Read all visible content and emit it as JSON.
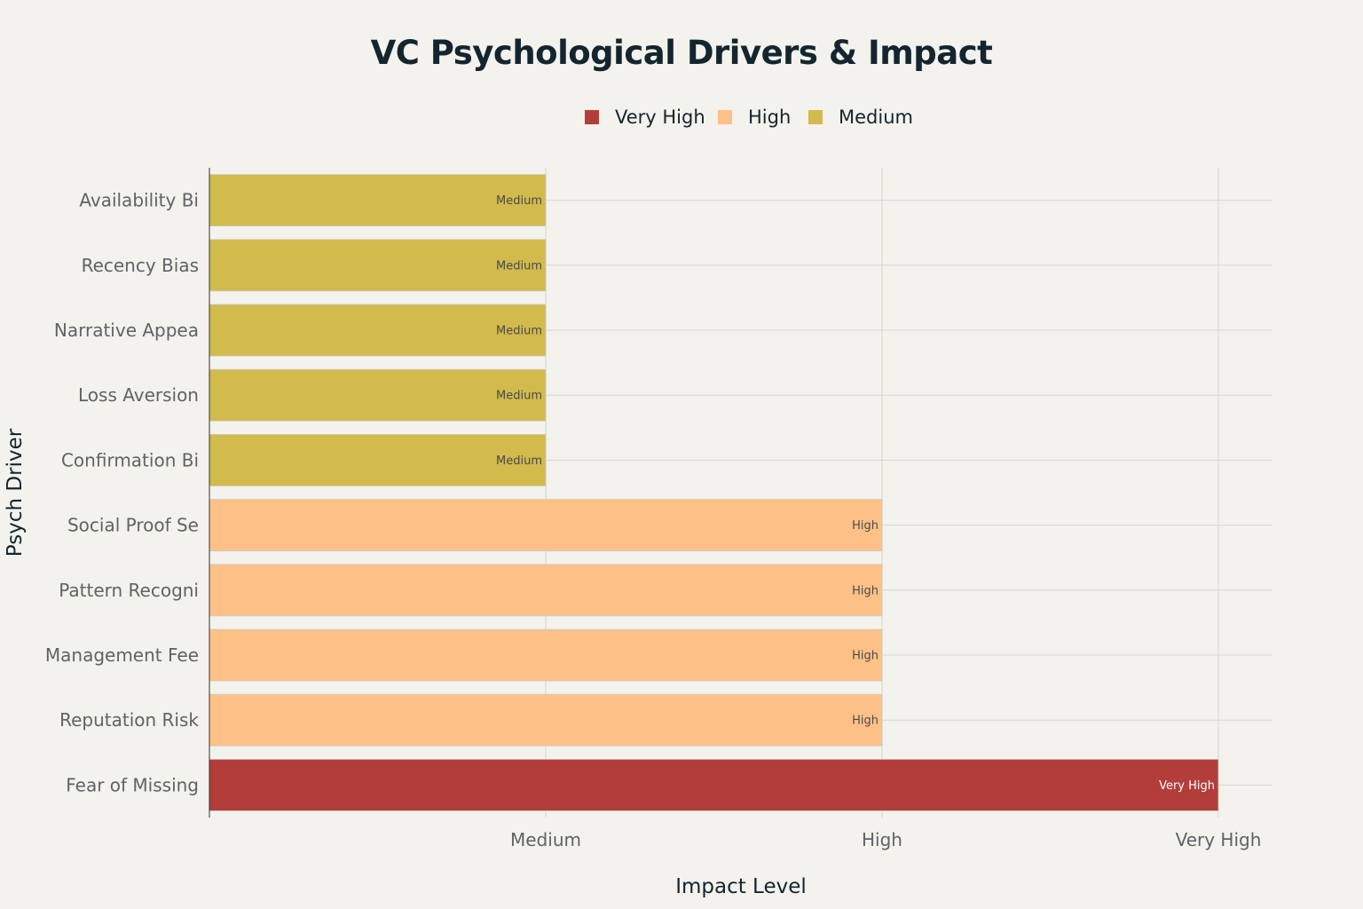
{
  "chart_data": {
    "type": "bar",
    "orientation": "horizontal",
    "title": "VC Psychological Drivers & Impact",
    "xlabel": "Impact Level",
    "ylabel": "Psych Driver",
    "x_tick_labels": [
      "Medium",
      "High",
      "Very High"
    ],
    "xlim": [
      0,
      3
    ],
    "grid": true,
    "legend_position": "top-center",
    "legend": [
      {
        "name": "Very High",
        "color": "#b33d3a"
      },
      {
        "name": "High",
        "color": "#fdc187"
      },
      {
        "name": "Medium",
        "color": "#d2ba4c"
      }
    ],
    "bars": [
      {
        "category": "Availability Bi",
        "value": 1,
        "level": "Medium",
        "label": "Medium"
      },
      {
        "category": "Recency Bias",
        "value": 1,
        "level": "Medium",
        "label": "Medium"
      },
      {
        "category": "Narrative Appea",
        "value": 1,
        "level": "Medium",
        "label": "Medium"
      },
      {
        "category": "Loss Aversion",
        "value": 1,
        "level": "Medium",
        "label": "Medium"
      },
      {
        "category": "Confirmation Bi",
        "value": 1,
        "level": "Medium",
        "label": "Medium"
      },
      {
        "category": "Social Proof Se",
        "value": 2,
        "level": "High",
        "label": "High"
      },
      {
        "category": "Pattern Recogni",
        "value": 2,
        "level": "High",
        "label": "High"
      },
      {
        "category": "Management Fee ",
        "value": 2,
        "level": "High",
        "label": "High"
      },
      {
        "category": "Reputation Risk",
        "value": 2,
        "level": "High",
        "label": "High"
      },
      {
        "category": "Fear of Missing",
        "value": 3,
        "level": "Very High",
        "label": "Very High"
      }
    ]
  },
  "colors": {
    "background": "#f3f2ec",
    "grid": "#d6d6d2",
    "axis_text": "#5f6368",
    "title_text": "#13252f",
    "bar_label_dark": "#4a4a4a",
    "bar_label_light": "#ffffff"
  }
}
